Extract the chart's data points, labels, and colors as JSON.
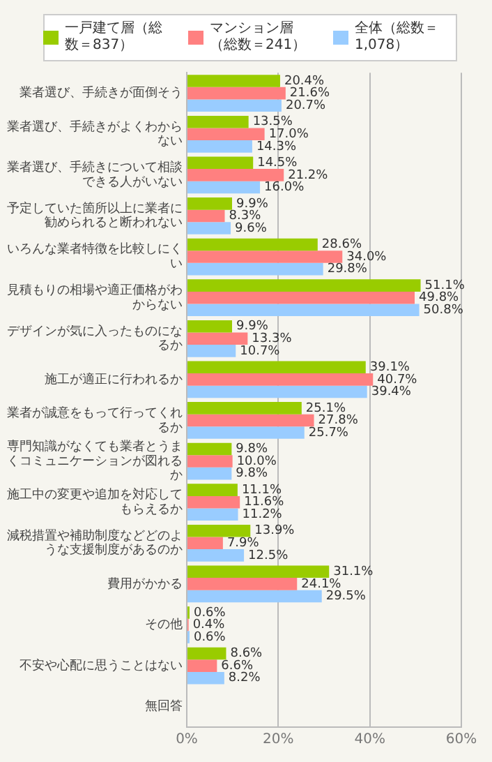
{
  "chart_data": {
    "type": "bar",
    "orientation": "horizontal",
    "categories": [
      "業者選び、手続きが面倒そう",
      "業者選び、手続きがよくわからない",
      "業者選び、手続きについて相談できる人がいない",
      "予定していた箇所以上に業者に勧められると断われない",
      "いろんな業者特徴を比較しにくい",
      "見積もりの相場や適正価格がわからない",
      "デザインが気に入ったものになるか",
      "施工が適正に行われるか",
      "業者が誠意をもって行ってくれるか",
      "専門知識がなくても業者とうまくコミュニケーションが図れるか",
      "施工中の変更や追加を対応してもらえるか",
      "減税措置や補助制度などどのような支援制度があるのか",
      "費用がかかる",
      "その他",
      "不安や心配に思うことはない",
      "無回答"
    ],
    "series": [
      {
        "name": "一戸建て層（総数＝837）",
        "color": "#99cc00",
        "values": [
          20.4,
          13.5,
          14.5,
          9.9,
          28.6,
          51.1,
          9.9,
          39.1,
          25.1,
          9.8,
          11.1,
          13.9,
          31.1,
          0.6,
          8.6,
          null
        ],
        "value_labels": [
          "20.4%",
          "13.5%",
          "14.5%",
          "9.9%",
          "28.6%",
          "51.1%",
          "9.9%",
          "39.1%",
          "25.1%",
          "9.8%",
          "11.1%",
          "13.9%",
          "31.1%",
          "0.6%",
          "8.6%",
          null
        ]
      },
      {
        "name": "マンション層（総数＝241）",
        "color": "#ff8080",
        "values": [
          21.6,
          17.0,
          21.2,
          8.3,
          34.0,
          49.8,
          13.3,
          40.7,
          27.8,
          10.0,
          11.6,
          7.9,
          24.1,
          0.4,
          6.6,
          null
        ],
        "value_labels": [
          "21.6%",
          "17.0%",
          "21.2%",
          "8.3%",
          "34.0%",
          "49.8%",
          "13.3%",
          "40.7%",
          "27.8%",
          "10.0%",
          "11.6%",
          "7.9%",
          "24.1%",
          "0.4%",
          "6.6%",
          null
        ]
      },
      {
        "name": "全体（総数＝1,078）",
        "color": "#99ccff",
        "values": [
          20.7,
          14.3,
          16.0,
          9.6,
          29.8,
          50.8,
          10.7,
          39.4,
          25.7,
          9.8,
          11.2,
          12.5,
          29.5,
          0.6,
          8.2,
          null
        ],
        "value_labels": [
          "20.7%",
          "14.3%",
          "16.0%",
          "9.6%",
          "29.8%",
          "50.8%",
          "10.7%",
          "39.4%",
          "25.7%",
          "9.8%",
          "11.2%",
          "12.5%",
          "29.5%",
          "0.6%",
          "8.2%",
          null
        ]
      }
    ],
    "xlim": [
      0,
      60
    ],
    "xticks": [
      {
        "value": 0,
        "label": "0%"
      },
      {
        "value": 20,
        "label": "20%"
      },
      {
        "value": 40,
        "label": "40%"
      },
      {
        "value": 60,
        "label": "60%"
      }
    ],
    "grid": "x",
    "legend": "top"
  }
}
